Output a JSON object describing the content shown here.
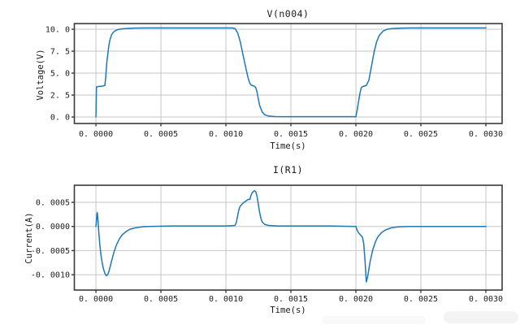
{
  "figure": {
    "background": "#ffffff",
    "line_color": "#1f77b4",
    "grid_color": "#c6c6c6",
    "spine_color": "#3a3a3a",
    "text_color": "#1c1c1c"
  },
  "chart_data": [
    {
      "type": "line",
      "title": "V(n004)",
      "xlabel": "Time(s)",
      "ylabel": "Voltage(V)",
      "xlim": [
        -0.000166,
        0.003125
      ],
      "ylim": [
        -0.74,
        10.65
      ],
      "grid": true,
      "legend": "none",
      "xticks": [
        0,
        0.0005,
        0.001,
        0.0015,
        0.002,
        0.0025,
        0.003
      ],
      "xtick_labels": [
        "0. 0000",
        "0. 0005",
        "0. 0010",
        "0. 0015",
        "0. 0020",
        "0. 0025",
        "0. 0030"
      ],
      "yticks": [
        0,
        2.5,
        5,
        7.5,
        10
      ],
      "ytick_labels": [
        "0. 0",
        "2. 5",
        "5. 0",
        "7. 5",
        "10. 0"
      ],
      "series": [
        {
          "name": "V(n004)",
          "x": [
            0,
            4e-06,
            1e-05,
            3e-05,
            5e-05,
            6.9e-05,
            7.5e-05,
            8e-05,
            8.5e-05,
            9e-05,
            0.0001,
            0.00011,
            0.00012,
            0.00013,
            0.00015,
            0.00017,
            0.0002,
            0.00024,
            0.0003,
            0.0004,
            0.0006,
            0.0009,
            0.00105,
            0.00107,
            0.00109,
            0.00111,
            0.00113,
            0.00115,
            0.00117,
            0.00118,
            0.00119,
            0.0012,
            0.00122,
            0.00123,
            0.00124,
            0.00125,
            0.00126,
            0.00128,
            0.0013,
            0.00133,
            0.00138,
            0.00145,
            0.0016,
            0.0019,
            0.002,
            0.00201,
            0.00203,
            0.00204,
            0.00205,
            0.00208,
            0.0021,
            0.00212,
            0.00214,
            0.00216,
            0.00218,
            0.00221,
            0.00224,
            0.00228,
            0.00234,
            0.00242,
            0.0026,
            0.003
          ],
          "y": [
            0,
            3.4,
            3.45,
            3.5,
            3.52,
            3.6,
            4.5,
            5.5,
            6.4,
            7.0,
            8.2,
            8.9,
            9.35,
            9.6,
            9.85,
            9.97,
            10.05,
            10.1,
            10.14,
            10.15,
            10.15,
            10.15,
            10.15,
            10.08,
            9.6,
            8.6,
            7.2,
            5.8,
            4.5,
            4.0,
            3.7,
            3.6,
            3.5,
            3.35,
            2.8,
            2.0,
            1.3,
            0.55,
            0.25,
            0.1,
            0.05,
            0.04,
            0.04,
            0.04,
            0.04,
            0.8,
            2.6,
            3.3,
            3.45,
            3.6,
            4.2,
            5.8,
            7.4,
            8.6,
            9.3,
            9.8,
            10.0,
            10.08,
            10.13,
            10.15,
            10.15,
            10.15
          ]
        }
      ]
    },
    {
      "type": "line",
      "title": "I(R1)",
      "xlabel": "Time(s)",
      "ylabel": "Current(A)",
      "xlim": [
        -0.000166,
        0.003125
      ],
      "ylim": [
        -0.001318,
        0.000854
      ],
      "grid": true,
      "legend": "none",
      "xticks": [
        0,
        0.0005,
        0.001,
        0.0015,
        0.002,
        0.0025,
        0.003
      ],
      "xtick_labels": [
        "0. 0000",
        "0. 0005",
        "0. 0010",
        "0. 0015",
        "0. 0020",
        "0. 0025",
        "0. 0030"
      ],
      "yticks": [
        0.0005,
        0,
        -0.0005,
        -0.001
      ],
      "ytick_labels": [
        "0. 0005",
        "0. 0000",
        "-0. 0005",
        "-0. 0010"
      ],
      "series": [
        {
          "name": "I(R1)",
          "x": [
            0,
            4e-06,
            8e-06,
            1e-05,
            1.3e-05,
            1.8e-05,
            2.2e-05,
            3e-05,
            4e-05,
            5e-05,
            6e-05,
            7e-05,
            8e-05,
            9e-05,
            0.0001,
            0.00011,
            0.00012,
            0.00014,
            0.00016,
            0.00018,
            0.0002,
            0.00023,
            0.00026,
            0.0003,
            0.00035,
            0.0004,
            0.0006,
            0.001,
            0.00107,
            0.00108,
            0.00109,
            0.0011,
            0.00111,
            0.00113,
            0.00115,
            0.00117,
            0.001185,
            0.00119,
            0.0012,
            0.00121,
            0.00122,
            0.00123,
            0.00124,
            0.00125,
            0.00126,
            0.00127,
            0.00128,
            0.0013,
            0.00133,
            0.0014,
            0.0018,
            0.002,
            0.00201,
            0.00202,
            0.00203,
            0.00205,
            0.00206,
            0.00207,
            0.00208,
            0.00209,
            0.0021,
            0.00211,
            0.00213,
            0.00215,
            0.00217,
            0.0022,
            0.00223,
            0.00227,
            0.00232,
            0.0024,
            0.003
          ],
          "y": [
            0,
            0.00012,
            0.00026,
            0.00029,
            0.00022,
            5e-05,
            -0.00012,
            -0.00038,
            -0.00062,
            -0.00078,
            -0.0009,
            -0.00098,
            -0.00102,
            -0.001,
            -0.00093,
            -0.00083,
            -0.00072,
            -0.00052,
            -0.00037,
            -0.00026,
            -0.00018,
            -0.00011,
            -6e-05,
            -3e-05,
            -1e-05,
            0,
            1e-05,
            1e-05,
            2e-05,
            8e-05,
            0.00022,
            0.00035,
            0.00042,
            0.00048,
            0.00052,
            0.00056,
            0.00056,
            0.00062,
            0.00069,
            0.00072,
            0.00074,
            0.00072,
            0.00062,
            0.00045,
            0.00028,
            0.00016,
            9e-05,
            4e-05,
            2e-05,
            1e-05,
            1e-05,
            0,
            -8e-05,
            -0.00013,
            -0.00016,
            -0.00022,
            -0.00035,
            -0.0007,
            -0.00115,
            -0.00105,
            -0.00088,
            -0.00072,
            -0.00048,
            -0.00032,
            -0.00021,
            -0.00012,
            -7e-05,
            -3e-05,
            -1e-05,
            0,
            0
          ]
        }
      ]
    }
  ]
}
